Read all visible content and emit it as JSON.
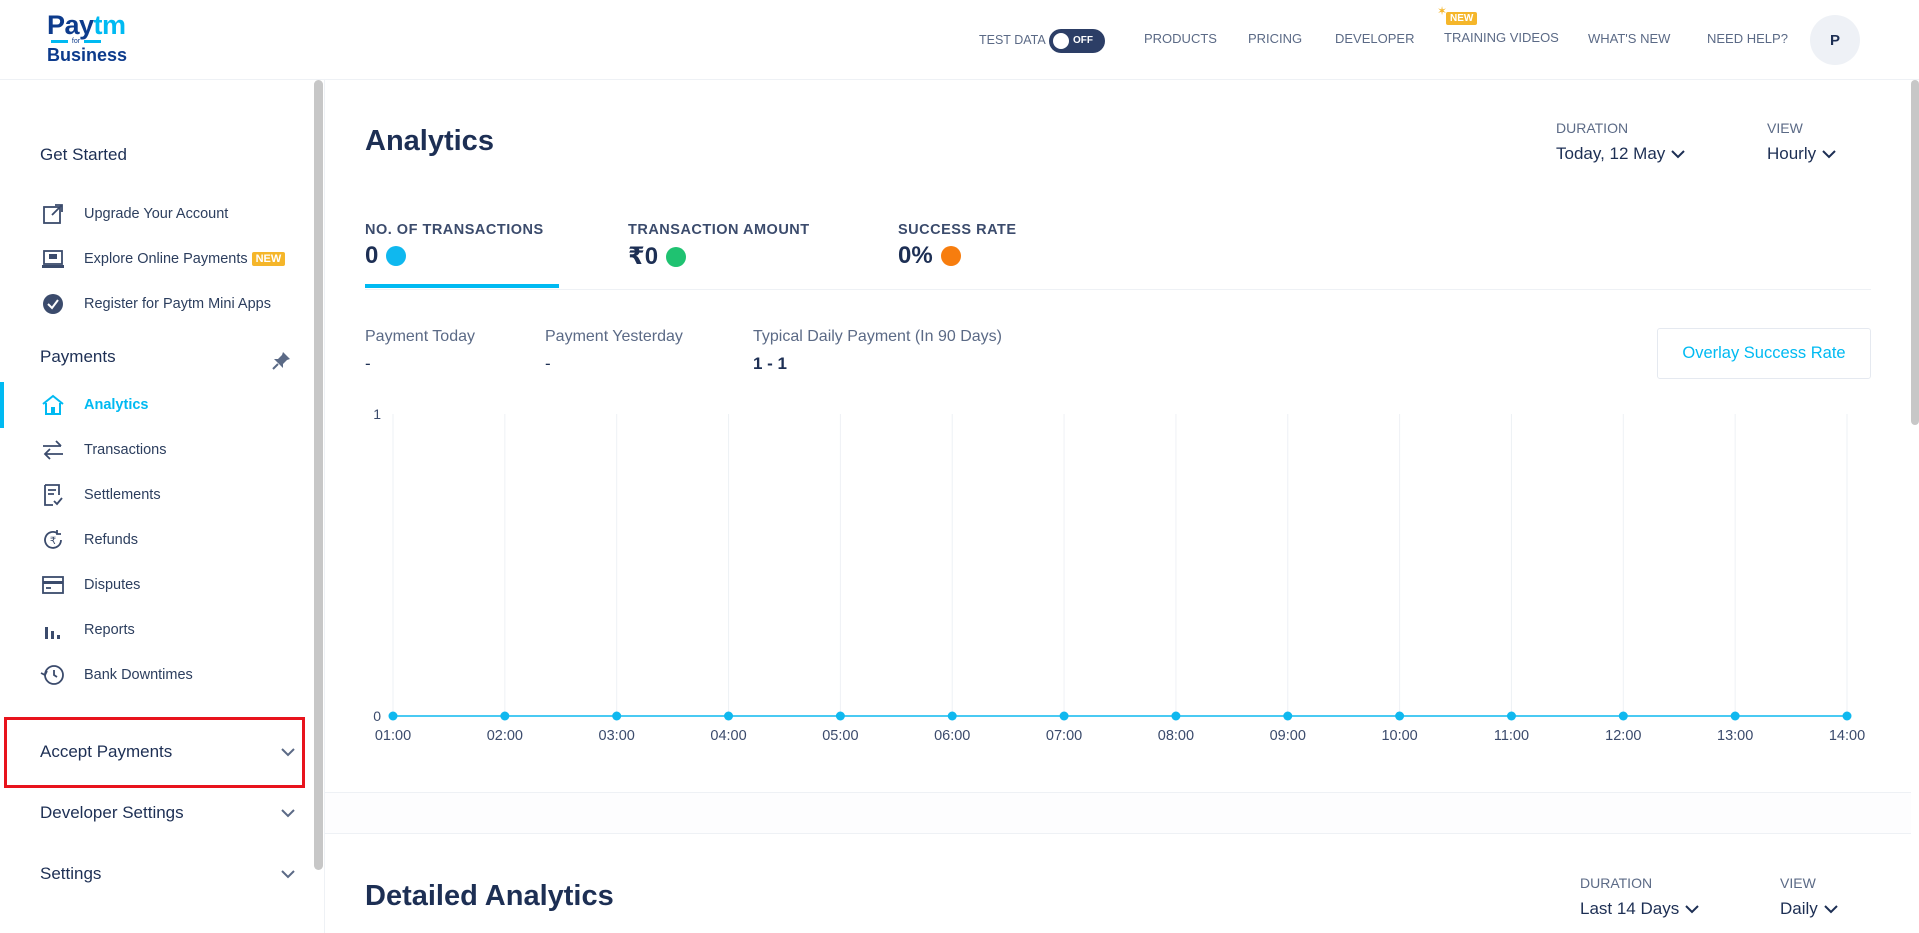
{
  "header": {
    "logo": {
      "brand_part1": "Pay",
      "brand_part2": "tm",
      "for_text": "for",
      "sub": "Business"
    },
    "test_data_label": "TEST DATA",
    "toggle_label": "OFF",
    "nav": [
      {
        "id": "products",
        "label": "PRODUCTS"
      },
      {
        "id": "pricing",
        "label": "PRICING"
      },
      {
        "id": "developer",
        "label": "DEVELOPER"
      },
      {
        "id": "training",
        "label": "TRAINING VIDEOS",
        "badge": "NEW"
      },
      {
        "id": "whats-new",
        "label": "WHAT'S NEW"
      },
      {
        "id": "help",
        "label": "NEED HELP?"
      }
    ],
    "avatar_initial": "P"
  },
  "sidebar": {
    "get_started": {
      "title": "Get Started",
      "items": [
        {
          "label": "Upgrade Your Account",
          "icon": "external-link-icon"
        },
        {
          "label": "Explore Online Payments",
          "icon": "laptop-icon",
          "badge": "NEW"
        },
        {
          "label": "Register for Paytm Mini Apps",
          "icon": "check-circle-icon"
        }
      ]
    },
    "payments": {
      "title": "Payments",
      "items": [
        {
          "label": "Analytics",
          "icon": "home-icon",
          "active": true
        },
        {
          "label": "Transactions",
          "icon": "swap-arrows-icon"
        },
        {
          "label": "Settlements",
          "icon": "document-check-icon"
        },
        {
          "label": "Refunds",
          "icon": "rupee-refresh-icon"
        },
        {
          "label": "Disputes",
          "icon": "card-icon"
        },
        {
          "label": "Reports",
          "icon": "bar-chart-icon"
        },
        {
          "label": "Bank Downtimes",
          "icon": "history-clock-icon"
        }
      ]
    },
    "collapsibles": [
      {
        "label": "Accept Payments"
      },
      {
        "label": "Developer Settings"
      },
      {
        "label": "Settings"
      }
    ]
  },
  "main": {
    "title": "Analytics",
    "duration": {
      "label": "DURATION",
      "value": "Today, 12 May"
    },
    "view": {
      "label": "VIEW",
      "value": "Hourly"
    },
    "metrics": [
      {
        "label": "NO. OF TRANSACTIONS",
        "value": "0",
        "color": "#0fb8ef"
      },
      {
        "label": "TRANSACTION AMOUNT",
        "value": "₹0",
        "color": "#1fc271"
      },
      {
        "label": "SUCCESS RATE",
        "value": "0%",
        "color": "#f77d0e"
      }
    ],
    "stats": [
      {
        "label": "Payment Today",
        "value": "-"
      },
      {
        "label": "Payment Yesterday",
        "value": "-"
      },
      {
        "label": "Typical Daily Payment (In 90 Days)",
        "value": "1 - 1"
      }
    ],
    "overlay_button": "Overlay Success Rate",
    "detail": {
      "title": "Detailed Analytics",
      "duration": {
        "label": "DURATION",
        "value": "Last 14 Days"
      },
      "view": {
        "label": "VIEW",
        "value": "Daily"
      }
    }
  },
  "chart_data": {
    "type": "line",
    "x": [
      "01:00",
      "02:00",
      "03:00",
      "04:00",
      "05:00",
      "06:00",
      "07:00",
      "08:00",
      "09:00",
      "10:00",
      "11:00",
      "12:00",
      "13:00",
      "14:00"
    ],
    "series": [
      {
        "values": [
          0,
          0,
          0,
          0,
          0,
          0,
          0,
          0,
          0,
          0,
          0,
          0,
          0,
          0
        ],
        "color": "#0fb8ef"
      }
    ],
    "ylim": [
      0,
      1
    ],
    "yticks": [
      "0",
      "1"
    ],
    "grid": "vertical"
  }
}
